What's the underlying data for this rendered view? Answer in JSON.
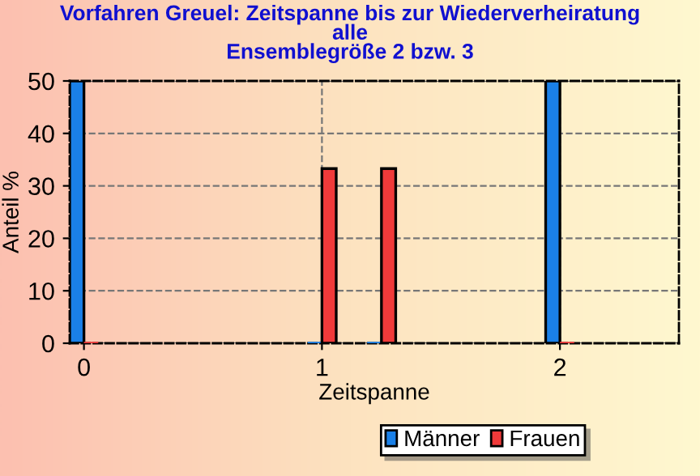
{
  "chart_data": {
    "type": "bar",
    "title": "Vorfahren Greuel: Zeitspanne bis zur Wiederverheiratung\nalle\nEnsemblegröße 2 bzw. 3",
    "xlabel": "Zeitspanne",
    "ylabel": "Anteil %",
    "x": [
      0,
      1,
      1.25,
      2
    ],
    "series": [
      {
        "name": "Männer",
        "color": "#1a80e8",
        "values": [
          50,
          0,
          0,
          50
        ]
      },
      {
        "name": "Frauen",
        "color": "#f03a3a",
        "values": [
          0,
          33.3,
          33.3,
          0
        ]
      }
    ],
    "xlim": [
      -0.06,
      2.5
    ],
    "xticks": [
      0,
      1,
      2
    ],
    "ylim": [
      0,
      50
    ],
    "yticks": [
      0,
      10,
      20,
      30,
      40,
      50
    ],
    "grid": true,
    "legend": "bottom"
  }
}
